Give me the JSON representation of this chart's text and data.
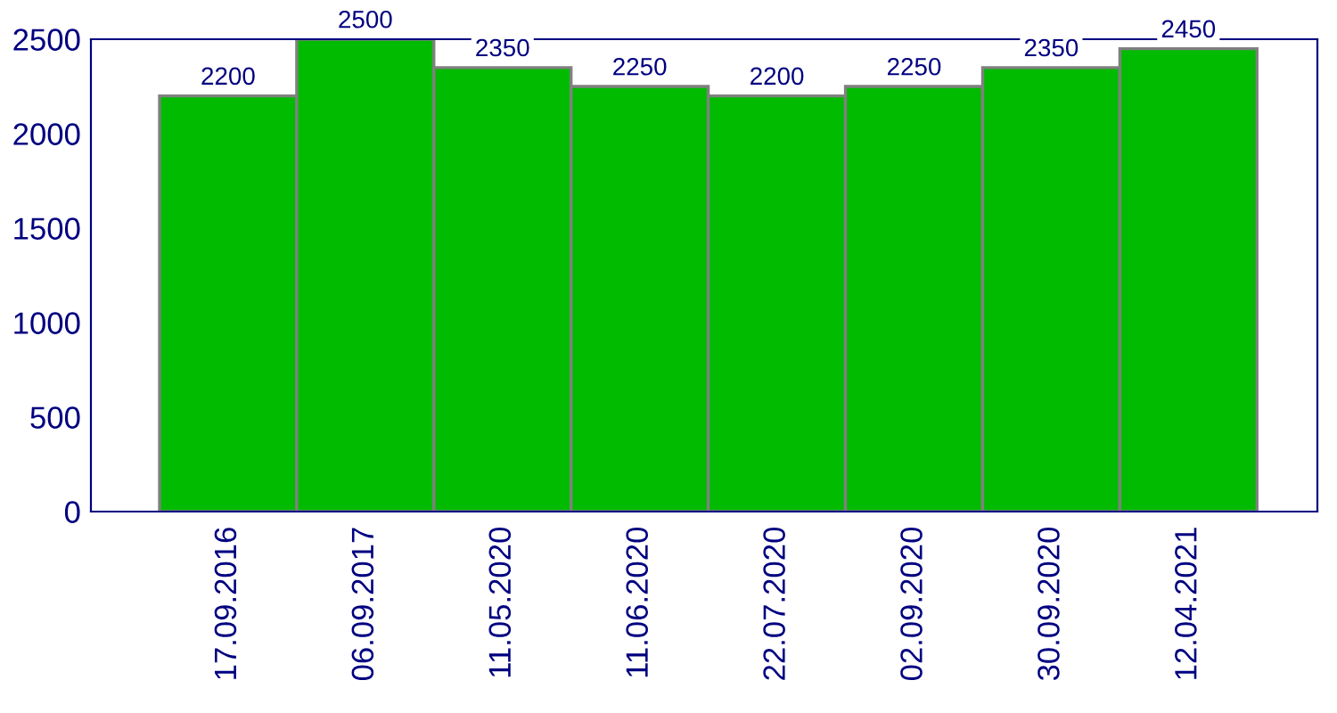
{
  "chart_data": {
    "type": "bar",
    "categories": [
      "17.09.2016",
      "06.09.2017",
      "11.05.2020",
      "11.06.2020",
      "22.07.2020",
      "02.09.2020",
      "30.09.2020",
      "12.04.2021"
    ],
    "values": [
      2200,
      2500,
      2350,
      2250,
      2200,
      2250,
      2350,
      2450
    ],
    "color": "#00bb00",
    "ylim": [
      0,
      2500
    ],
    "yticks": [
      0,
      500,
      1000,
      1500,
      2000,
      2500
    ],
    "data_labels": true,
    "grid": false,
    "legend": false
  }
}
